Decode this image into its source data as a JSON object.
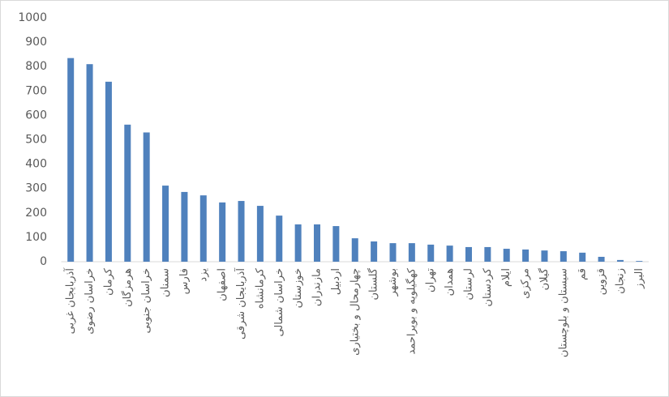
{
  "chart_data": {
    "type": "bar",
    "categories": [
      "آذربایجان غربی",
      "خراسان رضوی",
      "کرمان",
      "هرمزگان",
      "خراسان جنوبی",
      "سمنان",
      "فارس",
      "یزد",
      "اصفهان",
      "آذربایجان شرقی",
      "کرمانشاه",
      "خراسان شمالی",
      "خوزستان",
      "مازندران",
      "اردبیل",
      "چهارمحال و بختیاری",
      "گلستان",
      "بوشهر",
      "کهگیلویه و بویراحمد",
      "تهران",
      "همدان",
      "لرستان",
      "کردستان",
      "ایلام",
      "مرکزی",
      "گیلان",
      "سیستان و بلوچستان",
      "قم",
      "قزوین",
      "زنجان",
      "البرز"
    ],
    "values": [
      835,
      810,
      738,
      562,
      530,
      312,
      286,
      272,
      243,
      249,
      229,
      189,
      153,
      153,
      146,
      96,
      83,
      76,
      76,
      70,
      66,
      60,
      60,
      53,
      50,
      46,
      43,
      37,
      20,
      7,
      3
    ],
    "color": "#4f81bd",
    "ylim": [
      0,
      1000
    ],
    "yticks": [
      0,
      100,
      200,
      300,
      400,
      500,
      600,
      700,
      800,
      900,
      1000
    ]
  }
}
